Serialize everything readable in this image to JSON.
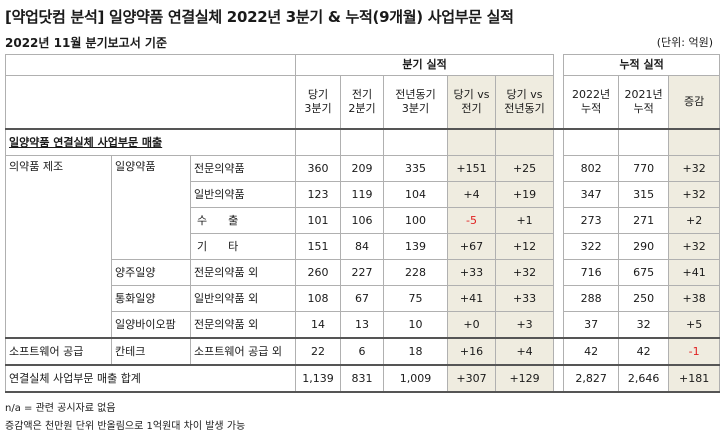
{
  "title": "[약업닷컴 분석] 일양약품 연결실체 2022년 3분기 & 누적(9개월) 사업부문 실적",
  "subtitle": "2022년 11월 분기보고서 기준",
  "unit": "(단위: 억원)",
  "header": {
    "group_quarter": "분기 실적",
    "group_cumulative": "누적 실적",
    "cols": [
      "당기\n3분기",
      "전기\n2분기",
      "전년동기\n3분기",
      "당기 vs\n전기",
      "당기 vs\n전년동기",
      "2022년\n누적",
      "2021년\n누적",
      "증감"
    ]
  },
  "section_label": "일양약품 연결실체 사업부문 매출",
  "rows": [
    {
      "seg": "의약품 제조",
      "co": "일양약품",
      "item": "전문의약품",
      "v": [
        "360",
        "209",
        "335",
        "+151",
        "+25",
        "802",
        "770",
        "+32"
      ]
    },
    {
      "seg": "",
      "co": "",
      "item": "일반의약품",
      "v": [
        "123",
        "119",
        "104",
        "+4",
        "+19",
        "347",
        "315",
        "+32"
      ]
    },
    {
      "seg": "",
      "co": "",
      "item": "수 출",
      "v": [
        "101",
        "106",
        "100",
        "-5",
        "+1",
        "273",
        "271",
        "+2"
      ]
    },
    {
      "seg": "",
      "co": "",
      "item": "기 타",
      "v": [
        "151",
        "84",
        "139",
        "+67",
        "+12",
        "322",
        "290",
        "+32"
      ]
    },
    {
      "seg": "",
      "co": "양주일양",
      "item": "전문의약품 외",
      "v": [
        "260",
        "227",
        "228",
        "+33",
        "+32",
        "716",
        "675",
        "+41"
      ]
    },
    {
      "seg": "",
      "co": "통화일양",
      "item": "일반의약품 외",
      "v": [
        "108",
        "67",
        "75",
        "+41",
        "+33",
        "288",
        "250",
        "+38"
      ]
    },
    {
      "seg": "",
      "co": "일양바이오팜",
      "item": "전문의약품 외",
      "v": [
        "14",
        "13",
        "10",
        "+0",
        "+3",
        "37",
        "32",
        "+5"
      ]
    },
    {
      "seg": "소프트웨어 공급",
      "co": "칸테크",
      "item": "소프트웨어 공급 외",
      "v": [
        "22",
        "6",
        "18",
        "+16",
        "+4",
        "42",
        "42",
        "-1"
      ]
    }
  ],
  "total": {
    "label": "연결실체 사업부문 매출 합계",
    "v": [
      "1,139",
      "831",
      "1,009",
      "+307",
      "+129",
      "2,827",
      "2,646",
      "+181"
    ]
  },
  "footnotes": [
    "n/a = 관련 공시자료 없음",
    "증감액은 천만원 단위 반올림으로 1억원대 차이 발생 가능"
  ],
  "colors": {
    "shade": "#efece0",
    "negative": "#e02020"
  }
}
